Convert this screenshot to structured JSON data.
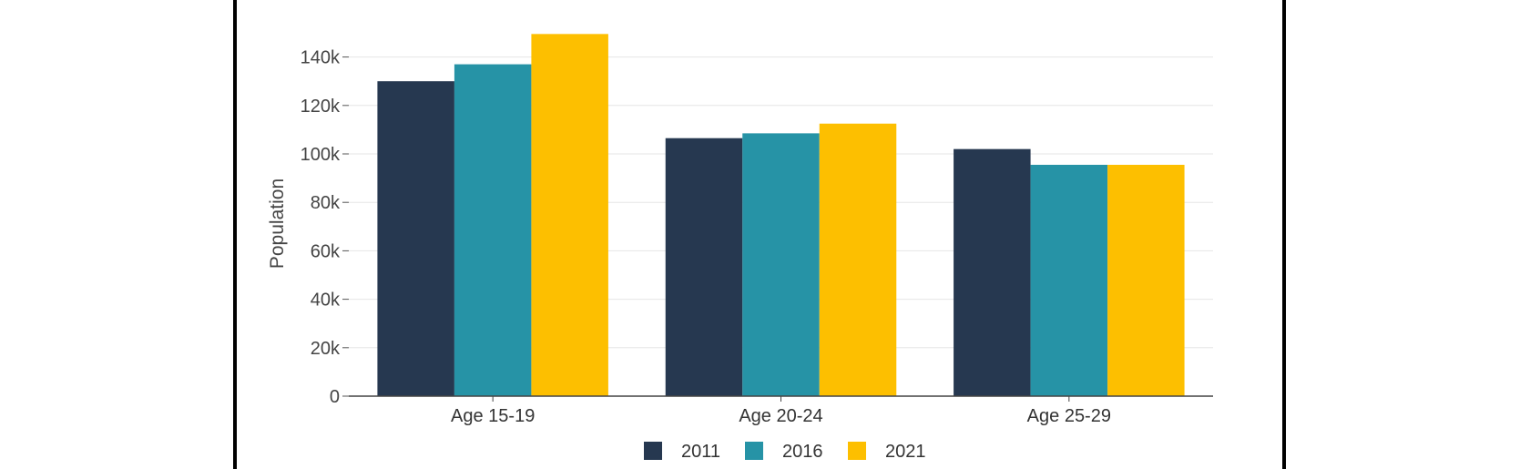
{
  "chart_data": {
    "type": "bar",
    "title": "",
    "xlabel": "",
    "ylabel": "Population",
    "categories": [
      "Age 15-19",
      "Age 20-24",
      "Age 25-29"
    ],
    "series": [
      {
        "name": "2011",
        "color": "#263850",
        "values": [
          130000,
          106500,
          102000
        ]
      },
      {
        "name": "2016",
        "color": "#2693a6",
        "values": [
          137000,
          108500,
          95500
        ]
      },
      {
        "name": "2021",
        "color": "#fdbf00",
        "values": [
          149500,
          112500,
          95500
        ]
      }
    ],
    "ylim": [
      0,
      150000
    ],
    "yticks": [
      {
        "value": 0,
        "label": "0"
      },
      {
        "value": 20000,
        "label": "20k"
      },
      {
        "value": 40000,
        "label": "40k"
      },
      {
        "value": 60000,
        "label": "60k"
      },
      {
        "value": 80000,
        "label": "80k"
      },
      {
        "value": 100000,
        "label": "100k"
      },
      {
        "value": 120000,
        "label": "120k"
      },
      {
        "value": 140000,
        "label": "140k"
      }
    ],
    "grid": true,
    "legend_position": "bottom"
  }
}
